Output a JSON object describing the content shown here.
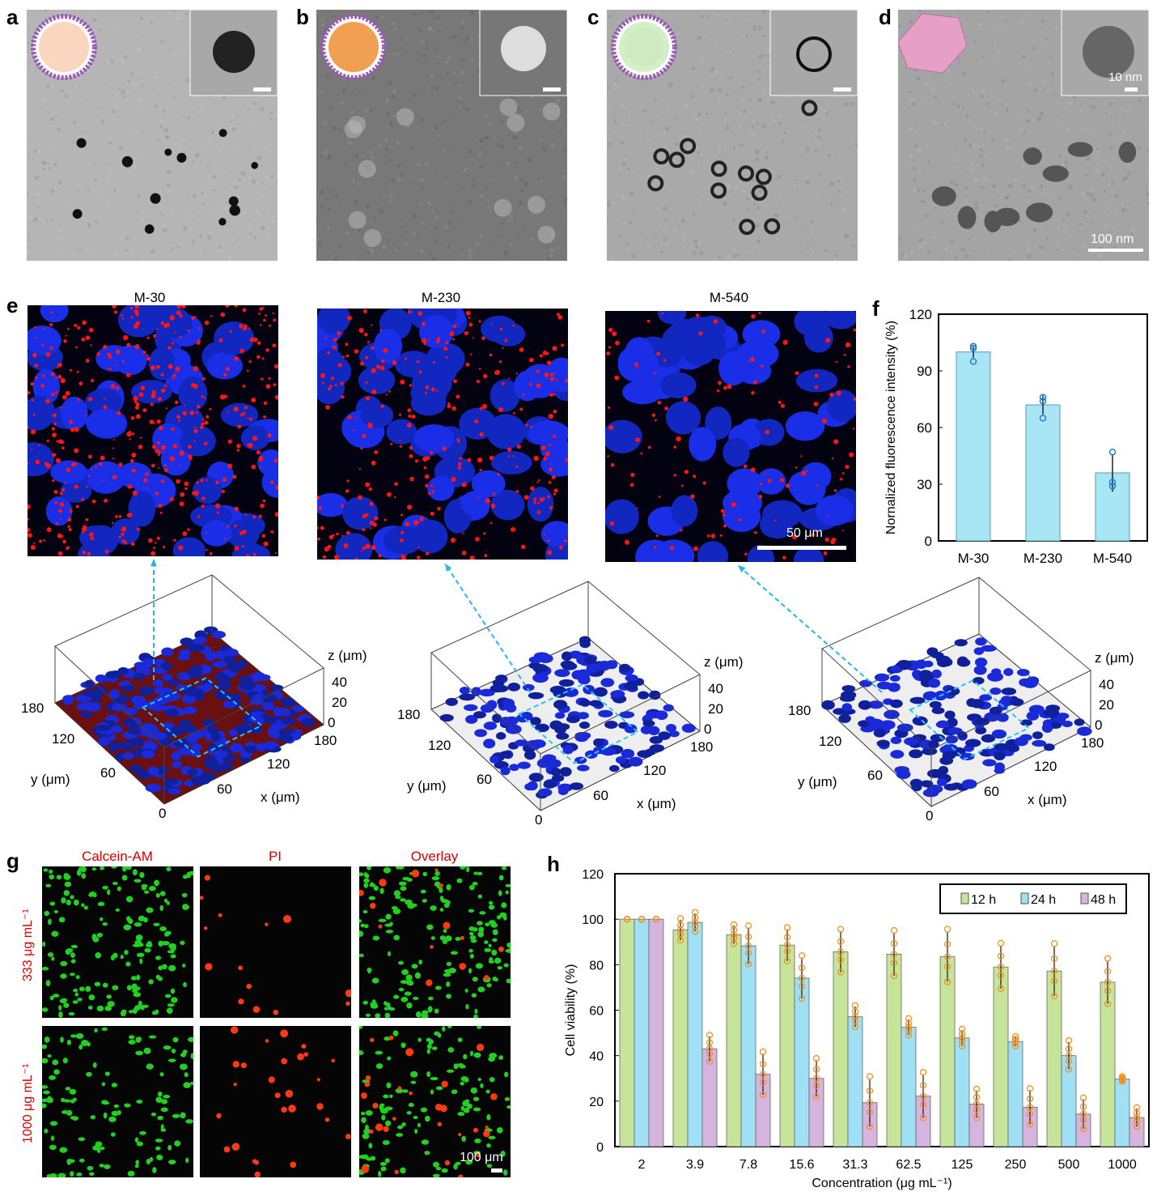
{
  "panels": {
    "a": {
      "label": "a"
    },
    "b": {
      "label": "b"
    },
    "c": {
      "label": "c"
    },
    "d": {
      "label": "d",
      "inset_scale": "10 nm",
      "scale": "100 nm"
    },
    "e": {
      "label": "e",
      "titles": [
        "M-30",
        "M-230",
        "M-540"
      ],
      "scale": "50 μm"
    },
    "f": {
      "label": "f"
    },
    "g": {
      "label": "g",
      "columns": [
        "Calcein-AM",
        "PI",
        "Overlay"
      ],
      "rows": [
        "333 μg mL⁻¹",
        "1000 μg mL⁻¹"
      ],
      "scale": "100 μm"
    },
    "h": {
      "label": "h"
    }
  },
  "plot3d": {
    "z_label": "z (μm)",
    "y_label": "y (μm)",
    "x_label": "x (μm)",
    "z_ticks": [
      "40",
      "20",
      "0"
    ],
    "y_ticks": [
      "180",
      "120",
      "60"
    ],
    "x_ticks": [
      "180",
      "120",
      "60"
    ],
    "origin": "0"
  },
  "colors": {
    "bar_f": "#a8e6f5",
    "green": "#c6e59a",
    "blue": "#9fe0f5",
    "purple": "#d6b4e0",
    "points": "#f5901e",
    "point_f": "#1f7fd0",
    "accent": "#22b8e8"
  },
  "chart_data": [
    {
      "type": "bar",
      "title": "",
      "xlabel": "",
      "ylabel": "Nornalized fluorescence intensity (%)",
      "ylim": [
        0,
        120
      ],
      "yticks": [
        "0",
        "30",
        "60",
        "90",
        "120"
      ],
      "categories": [
        "M-30",
        "M-230",
        "M-540"
      ],
      "values": [
        100,
        72,
        36
      ],
      "errors": [
        3,
        5,
        10
      ],
      "points": [
        [
          103,
          102,
          95
        ],
        [
          76,
          74,
          65
        ],
        [
          47,
          31,
          29
        ]
      ]
    },
    {
      "type": "bar",
      "title": "",
      "xlabel": "Concentration (μg mL⁻¹)",
      "ylabel": "Cell viability (%)",
      "ylim": [
        0,
        120
      ],
      "yticks": [
        "0",
        "20",
        "40",
        "60",
        "80",
        "100",
        "120"
      ],
      "legend": "top-right",
      "categories": [
        "2",
        "3.9",
        "7.8",
        "15.6",
        "31.3",
        "62.5",
        "125",
        "250",
        "500",
        "1000"
      ],
      "series": [
        {
          "name": "12 h",
          "values": [
            100,
            95.3,
            93.2,
            88.6,
            85.7,
            84.6,
            83.5,
            79.0,
            77.2,
            72.3
          ],
          "errors": [
            0,
            4.5,
            4,
            7,
            9,
            9.5,
            11,
            9.5,
            11,
            9.5
          ]
        },
        {
          "name": "24 h",
          "values": [
            100,
            98.6,
            88.3,
            74.1,
            57.1,
            52.5,
            47.8,
            46.2,
            40.0,
            29.7
          ],
          "errors": [
            0,
            4,
            8,
            9,
            4.5,
            3.5,
            3.5,
            2,
            6,
            1
          ]
        },
        {
          "name": "48 h",
          "values": [
            100,
            43.0,
            31.8,
            30.0,
            19.3,
            22.2,
            18.7,
            17.3,
            14.3,
            12.8
          ],
          "errors": [
            0,
            5.5,
            9,
            8,
            10.5,
            9.5,
            6,
            7.5,
            6.5,
            4
          ]
        }
      ]
    }
  ]
}
